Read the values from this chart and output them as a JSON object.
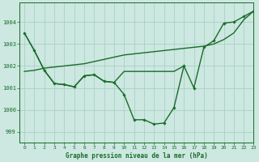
{
  "title": "Graphe pression niveau de la mer (hPa)",
  "background_color": "#cce8e0",
  "grid_color": "#aacfc8",
  "line_color": "#1a6b2a",
  "xlim": [
    -0.5,
    23
  ],
  "ylim": [
    998.5,
    1004.9
  ],
  "yticks": [
    999,
    1000,
    1001,
    1002,
    1003,
    1004
  ],
  "xticks": [
    0,
    1,
    2,
    3,
    4,
    5,
    6,
    7,
    8,
    9,
    10,
    11,
    12,
    13,
    14,
    15,
    16,
    17,
    18,
    19,
    20,
    21,
    22,
    23
  ],
  "line1_x": [
    0,
    1,
    2,
    3,
    4,
    5,
    6,
    7,
    8,
    9,
    10,
    11,
    12,
    13,
    14,
    15,
    16,
    17,
    18,
    19,
    20,
    21,
    22,
    23
  ],
  "line1_y": [
    1001.75,
    1001.8,
    1001.9,
    1001.95,
    1002.0,
    1002.05,
    1002.1,
    1002.2,
    1002.3,
    1002.4,
    1002.5,
    1002.55,
    1002.6,
    1002.65,
    1002.7,
    1002.75,
    1002.8,
    1002.85,
    1002.9,
    1003.0,
    1003.2,
    1003.5,
    1004.1,
    1004.5
  ],
  "line2_x": [
    0,
    1,
    2,
    3,
    4,
    5,
    6,
    7,
    8,
    9,
    10,
    11,
    12,
    13,
    14,
    15,
    16,
    17,
    18,
    19,
    20,
    21,
    22,
    23
  ],
  "line2_y": [
    1003.5,
    1002.7,
    1001.8,
    1001.2,
    1001.15,
    1001.05,
    1001.55,
    1001.6,
    1001.3,
    1001.25,
    1000.7,
    999.55,
    999.55,
    999.35,
    999.4,
    1000.1,
    1002.0,
    1001.0,
    1002.85,
    1003.15,
    1003.95,
    1004.0,
    1004.25,
    1004.5
  ],
  "line3_x": [
    0,
    1,
    2,
    3,
    4,
    5,
    6,
    7,
    8,
    9,
    10,
    11,
    12,
    13,
    14,
    15,
    16
  ],
  "line3_y": [
    1003.5,
    1002.7,
    1001.8,
    1001.2,
    1001.15,
    1001.05,
    1001.55,
    1001.6,
    1001.3,
    1001.25,
    1001.75,
    1001.75,
    1001.75,
    1001.75,
    1001.75,
    1001.75,
    1002.0
  ]
}
